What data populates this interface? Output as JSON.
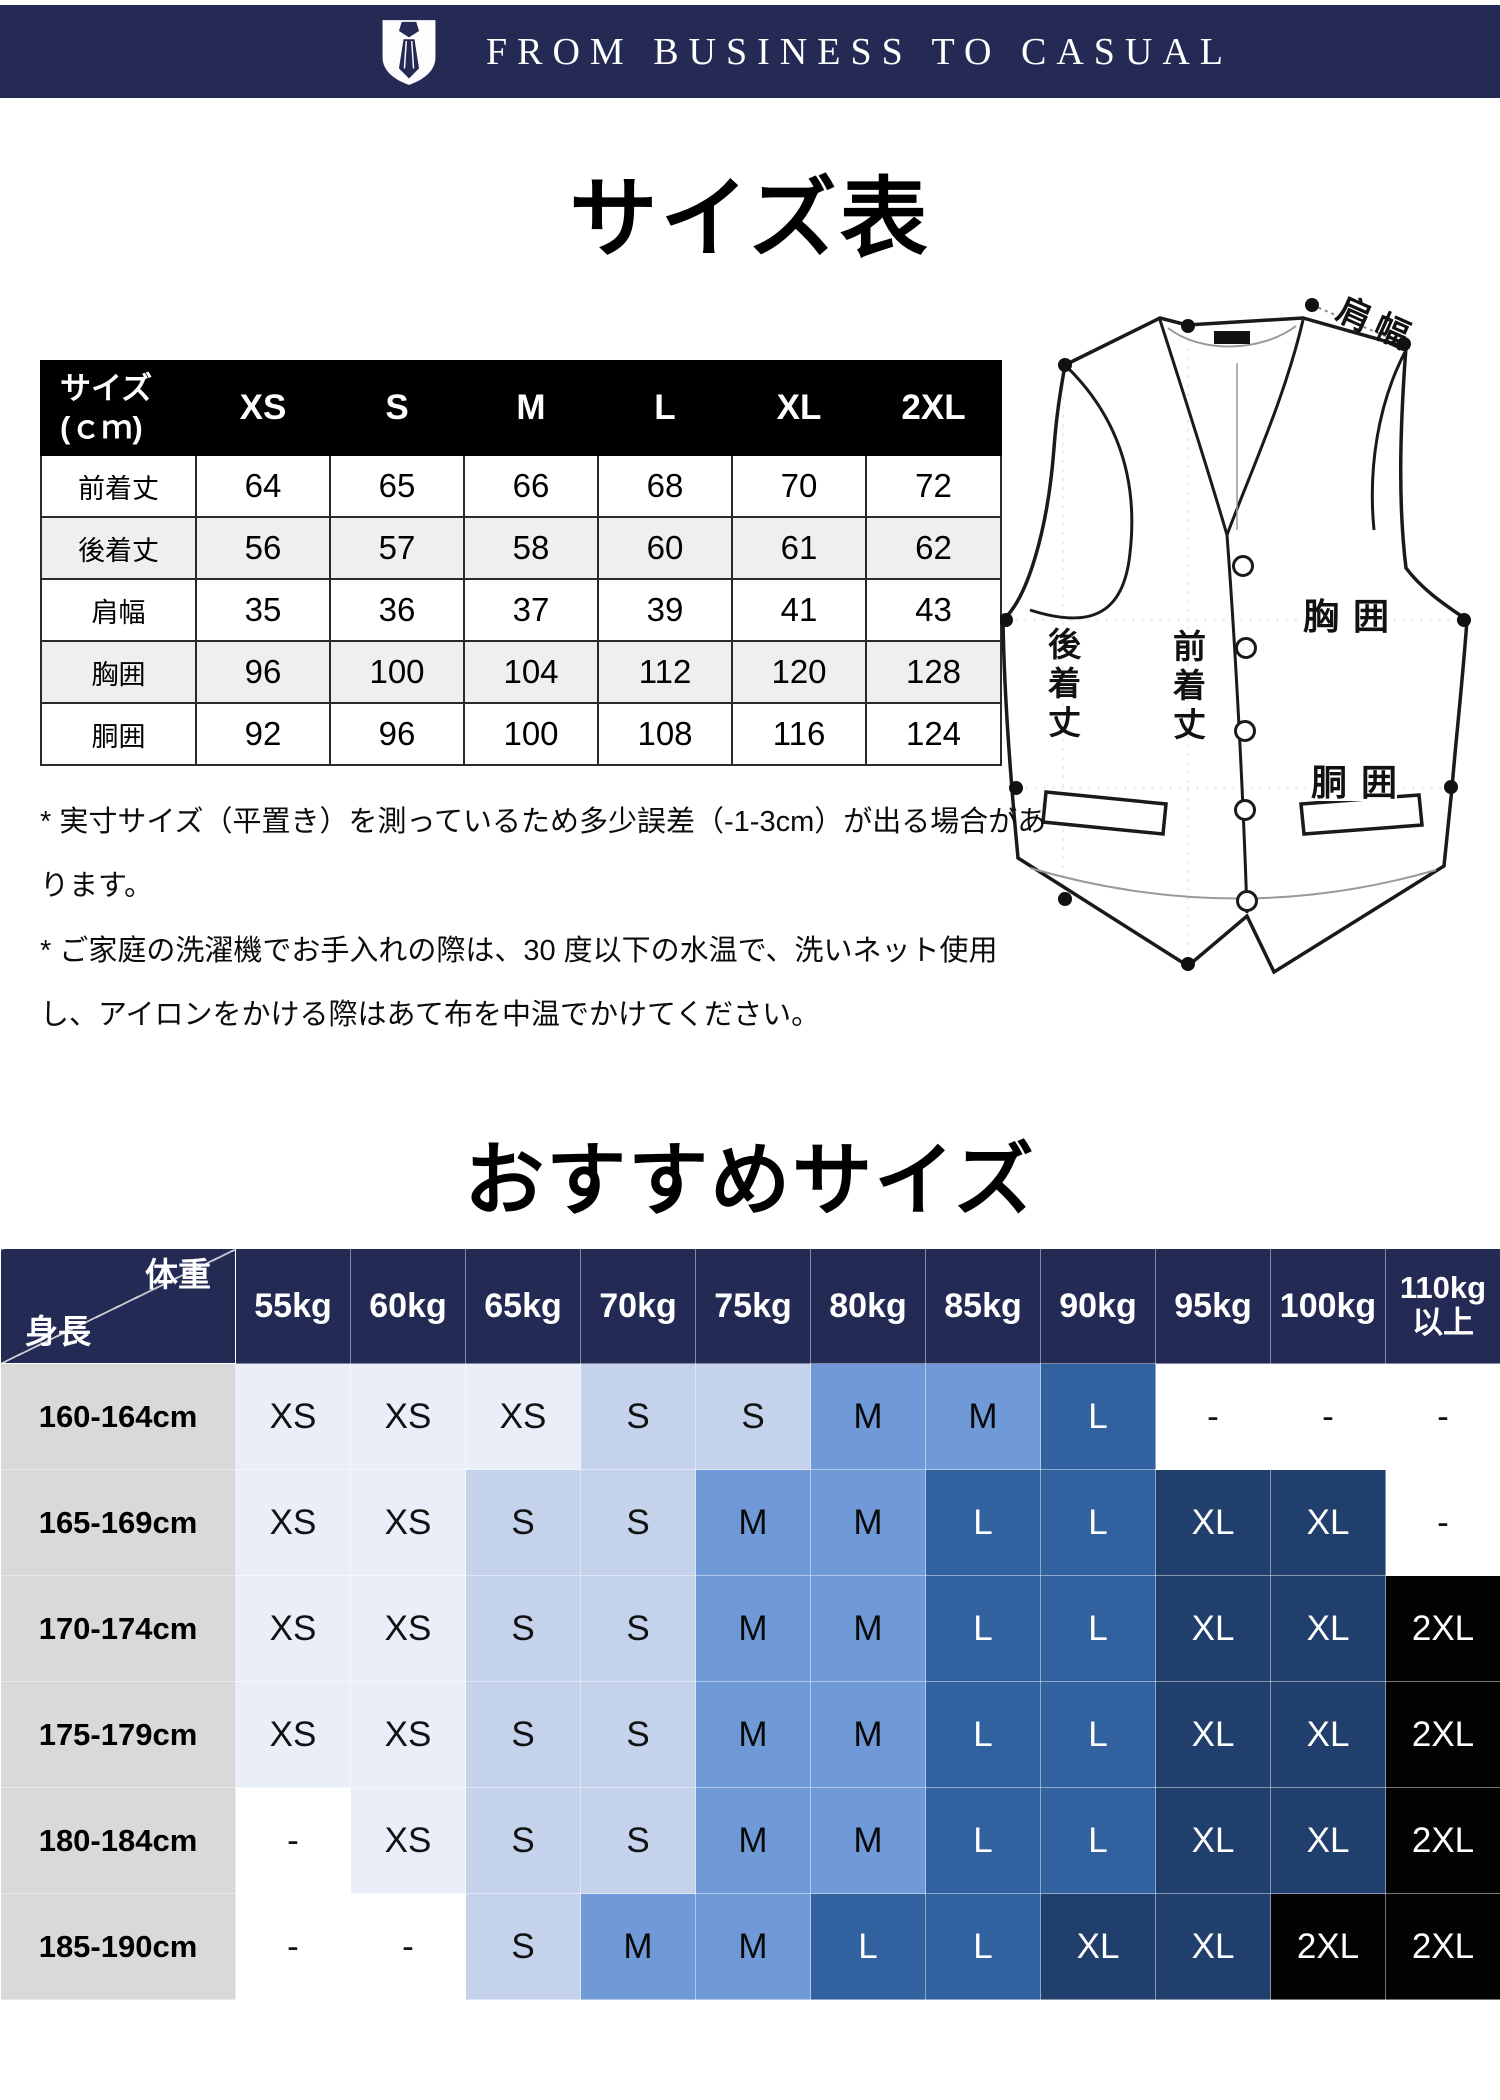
{
  "banner": {
    "tagline": "FROM BUSINESS TO CASUAL",
    "icon": "tie-shield-icon",
    "bg_color": "#242a53"
  },
  "size_chart": {
    "title": "サイズ表",
    "unit_header_line1": "サイズ",
    "unit_header_line2": "(ｃｍ)",
    "sizes": [
      "XS",
      "S",
      "M",
      "L",
      "XL",
      "2XL"
    ],
    "rows": [
      {
        "label": "前着丈",
        "values": [
          "64",
          "65",
          "66",
          "68",
          "70",
          "72"
        ]
      },
      {
        "label": "後着丈",
        "values": [
          "56",
          "57",
          "58",
          "60",
          "61",
          "62"
        ]
      },
      {
        "label": "肩幅",
        "values": [
          "35",
          "36",
          "37",
          "39",
          "41",
          "43"
        ]
      },
      {
        "label": "胸囲",
        "values": [
          "96",
          "100",
          "104",
          "112",
          "120",
          "128"
        ]
      },
      {
        "label": "胴囲",
        "values": [
          "92",
          "96",
          "100",
          "108",
          "116",
          "124"
        ]
      }
    ]
  },
  "diagram": {
    "shoulder": "肩幅",
    "chest": "胸囲",
    "waist": "胴囲",
    "front_length": "前着丈",
    "back_length": "後着丈"
  },
  "notes": [
    "* 実寸サイズ（平置き）を測っているため多少誤差（-1-3cm）が出る場合があります。",
    "* ご家庭の洗濯機でお手入れの際は、30 度以下の水温で、洗いネット使用し、アイロンをかける際はあて布を中温でかけてください。"
  ],
  "recommend": {
    "title": "おすすめサイズ",
    "corner_top": "体重",
    "corner_left": "身長",
    "weights": [
      "55kg",
      "60kg",
      "65kg",
      "70kg",
      "75kg",
      "80kg",
      "85kg",
      "90kg",
      "95kg",
      "100kg",
      "110kg\n以上"
    ],
    "rows": [
      {
        "height": "160-164cm",
        "sizes": [
          "XS",
          "XS",
          "XS",
          "S",
          "S",
          "M",
          "M",
          "L",
          "-",
          "-",
          "-"
        ]
      },
      {
        "height": "165-169cm",
        "sizes": [
          "XS",
          "XS",
          "S",
          "S",
          "M",
          "M",
          "L",
          "L",
          "XL",
          "XL",
          "-"
        ]
      },
      {
        "height": "170-174cm",
        "sizes": [
          "XS",
          "XS",
          "S",
          "S",
          "M",
          "M",
          "L",
          "L",
          "XL",
          "XL",
          "2XL"
        ]
      },
      {
        "height": "175-179cm",
        "sizes": [
          "XS",
          "XS",
          "S",
          "S",
          "M",
          "M",
          "L",
          "L",
          "XL",
          "XL",
          "2XL"
        ]
      },
      {
        "height": "180-184cm",
        "sizes": [
          "-",
          "XS",
          "S",
          "S",
          "M",
          "M",
          "L",
          "L",
          "XL",
          "XL",
          "2XL"
        ]
      },
      {
        "height": "185-190cm",
        "sizes": [
          "-",
          "-",
          "S",
          "M",
          "M",
          "L",
          "L",
          "XL",
          "XL",
          "2XL",
          "2XL"
        ]
      }
    ],
    "size_colors": {
      "XS": {
        "bg": "#e9eef8",
        "fg": "#111111"
      },
      "S": {
        "bg": "#c4d2ec",
        "fg": "#111111"
      },
      "M": {
        "bg": "#6f9ad7",
        "fg": "#0a0a0a"
      },
      "L": {
        "bg": "#31619e",
        "fg": "#ffffff"
      },
      "XL": {
        "bg": "#213f6c",
        "fg": "#ffffff"
      },
      "2XL": {
        "bg": "#030303",
        "fg": "#ffffff"
      },
      "-": {
        "bg": "#ffffff",
        "fg": "#111111"
      }
    },
    "header_bg": "#232a54",
    "height_col_bg": "#d9d9d9"
  }
}
